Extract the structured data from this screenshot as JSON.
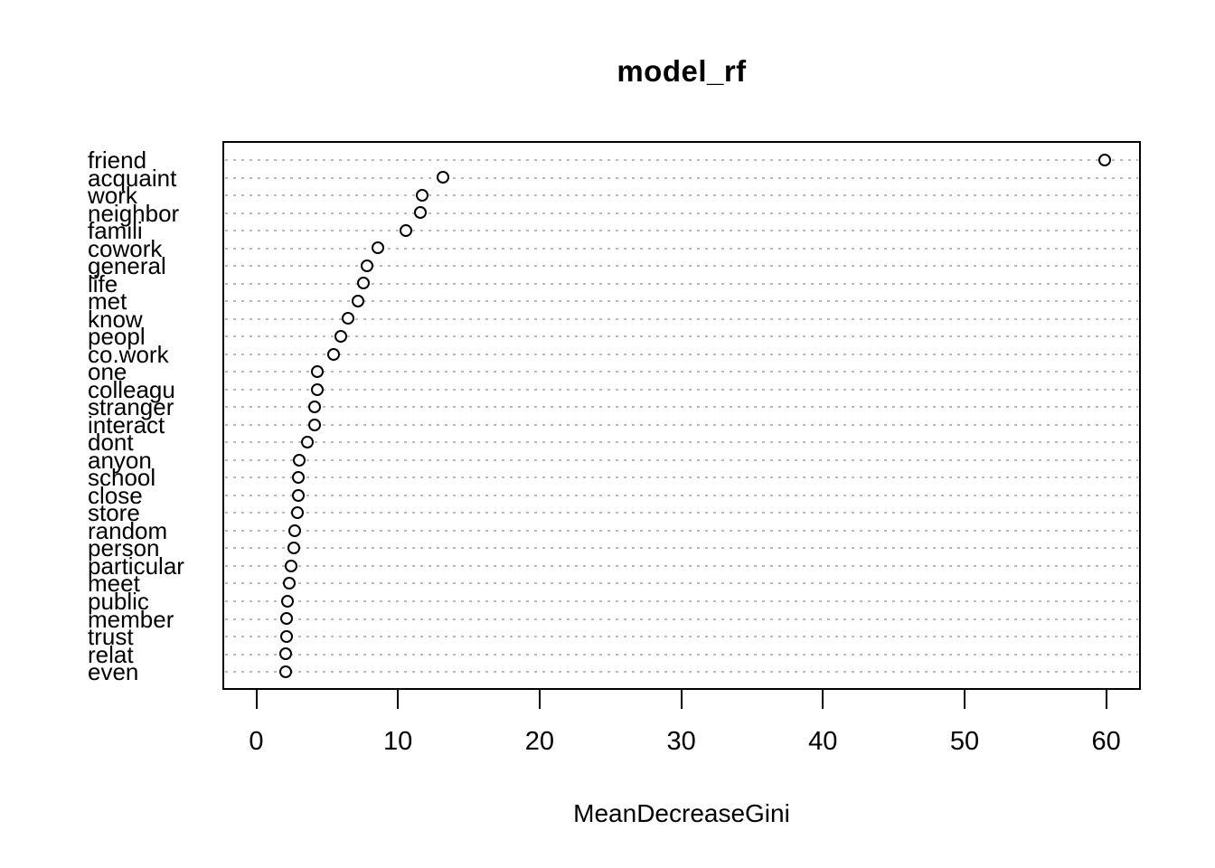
{
  "chart_data": {
    "type": "scatter",
    "subtype": "dotchart-variable-importance",
    "title": "model_rf",
    "xlabel": "MeanDecreaseGini",
    "ylabel": "",
    "xlim": [
      0,
      60
    ],
    "x_ticks": [
      0,
      10,
      20,
      30,
      40,
      50,
      60
    ],
    "grid": "dotted horizontal lines per category",
    "legend": "none",
    "point_style": "open-circle",
    "categories": [
      "friend",
      "acquaint",
      "work",
      "neighbor",
      "famili",
      "cowork",
      "general",
      "life",
      "met",
      "know",
      "peopl",
      "co.work",
      "one",
      "colleagu",
      "stranger",
      "interact",
      "dont",
      "anyon",
      "school",
      "close",
      "store",
      "random",
      "person",
      "particular",
      "meet",
      "public",
      "member",
      "trust",
      "relat",
      "even"
    ],
    "values": [
      59.9,
      13.2,
      11.7,
      11.6,
      10.6,
      8.6,
      7.8,
      7.6,
      7.2,
      6.5,
      6.0,
      5.5,
      4.3,
      4.3,
      4.15,
      4.15,
      3.6,
      3.05,
      2.97,
      2.97,
      2.9,
      2.72,
      2.66,
      2.45,
      2.35,
      2.2,
      2.12,
      2.12,
      2.08,
      2.08
    ]
  },
  "colors": {
    "background": "#ffffff",
    "text": "#000000",
    "grid": "#b9b9b9",
    "point_stroke": "#000000",
    "point_fill": "#ffffff",
    "box_border": "#000000"
  }
}
